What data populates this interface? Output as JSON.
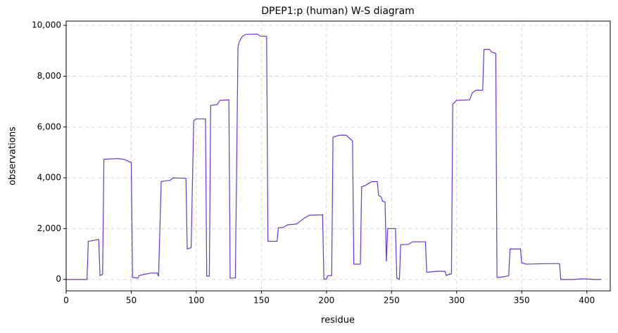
{
  "chart_data": {
    "type": "line",
    "title": "DPEP1:p (human) W-S diagram",
    "x_label": "residue",
    "y_label": "observations",
    "color": "#6a35d6",
    "grid": true,
    "xlim": [
      0,
      418
    ],
    "ylim": [
      -450,
      10170
    ],
    "xticks": [
      0,
      50,
      100,
      150,
      200,
      250,
      300,
      350,
      400
    ],
    "yticks": [
      0,
      {
        "value": 2000,
        "label": "2,000"
      },
      {
        "value": 4000,
        "label": "4,000"
      },
      {
        "value": 6000,
        "label": "6,000"
      },
      {
        "value": 8000,
        "label": "8,000"
      },
      {
        "value": 10000,
        "label": "10,000"
      }
    ],
    "x": [
      0,
      16,
      17,
      25,
      26,
      28,
      29,
      40,
      45,
      50,
      51,
      55,
      56,
      60,
      65,
      70,
      71,
      73,
      75,
      80,
      82,
      92,
      93,
      96,
      98,
      100,
      107,
      108,
      110,
      111,
      116,
      118,
      125,
      126,
      130,
      132,
      133,
      135,
      138,
      147,
      149,
      154,
      155,
      162,
      163,
      167,
      170,
      177,
      180,
      184,
      187,
      196,
      197,
      198,
      200,
      201,
      204,
      205,
      210,
      215,
      220,
      221,
      226,
      227,
      230,
      233,
      235,
      239,
      240,
      242,
      243,
      245,
      246,
      247,
      253,
      254,
      256,
      257,
      263,
      266,
      276,
      277,
      285,
      291,
      292,
      294,
      296,
      297,
      300,
      310,
      312,
      315,
      320,
      321,
      325,
      327,
      330,
      331,
      336,
      340,
      341,
      349,
      350,
      352,
      353,
      360,
      370,
      379,
      380,
      390,
      395,
      400,
      405,
      411
    ],
    "values": [
      0,
      0,
      1500,
      1570,
      150,
      200,
      4730,
      4760,
      4720,
      4600,
      80,
      50,
      150,
      200,
      250,
      250,
      120,
      3850,
      3870,
      3900,
      4000,
      3980,
      1200,
      1250,
      6250,
      6320,
      6320,
      130,
      130,
      6850,
      6880,
      7050,
      7070,
      50,
      60,
      9150,
      9350,
      9550,
      9650,
      9660,
      9580,
      9570,
      1500,
      1500,
      2030,
      2050,
      2150,
      2180,
      2300,
      2450,
      2530,
      2540,
      2550,
      0,
      20,
      150,
      150,
      5600,
      5680,
      5680,
      5450,
      600,
      600,
      3650,
      3700,
      3800,
      3850,
      3850,
      3300,
      3250,
      3080,
      3050,
      700,
      2000,
      2000,
      50,
      0,
      1370,
      1380,
      1480,
      1480,
      280,
      320,
      320,
      150,
      200,
      220,
      6900,
      7050,
      7070,
      7350,
      7450,
      7450,
      9050,
      9060,
      8950,
      8900,
      80,
      100,
      150,
      1200,
      1200,
      650,
      630,
      600,
      610,
      620,
      620,
      0,
      0,
      20,
      20,
      0,
      0
    ]
  }
}
